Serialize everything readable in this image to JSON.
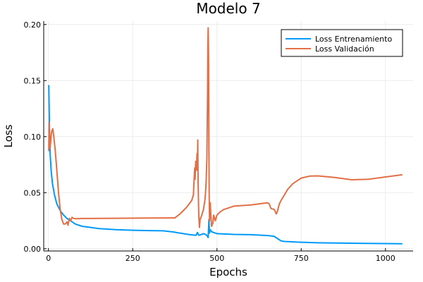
{
  "chart_data": {
    "type": "line",
    "title": "Modelo 7",
    "xlabel": "Epochs",
    "ylabel": "Loss",
    "xlim": [
      -14,
      1082
    ],
    "ylim": [
      -0.002,
      0.203
    ],
    "xticks": [
      0,
      250,
      500,
      750,
      1000
    ],
    "yticks": [
      0.0,
      0.05,
      0.1,
      0.15,
      0.2
    ],
    "xtick_labels": [
      "0",
      "250",
      "500",
      "750",
      "1000"
    ],
    "ytick_labels": [
      "0.00",
      "0.05",
      "0.10",
      "0.15",
      "0.20"
    ],
    "grid": true,
    "legend_position": "top-right",
    "series": [
      {
        "name": "Loss Entrenamiento",
        "color": "#009AFA",
        "points": [
          [
            1,
            0.146
          ],
          [
            3,
            0.11
          ],
          [
            5,
            0.085
          ],
          [
            8,
            0.07
          ],
          [
            12,
            0.058
          ],
          [
            18,
            0.048
          ],
          [
            25,
            0.04
          ],
          [
            35,
            0.034
          ],
          [
            45,
            0.03
          ],
          [
            55,
            0.027
          ],
          [
            65,
            0.025
          ],
          [
            80,
            0.022
          ],
          [
            100,
            0.02
          ],
          [
            150,
            0.018
          ],
          [
            200,
            0.017
          ],
          [
            250,
            0.0165
          ],
          [
            300,
            0.0162
          ],
          [
            340,
            0.016
          ],
          [
            370,
            0.015
          ],
          [
            400,
            0.0135
          ],
          [
            420,
            0.0125
          ],
          [
            438,
            0.012
          ],
          [
            442,
            0.0145
          ],
          [
            446,
            0.012
          ],
          [
            452,
            0.0125
          ],
          [
            460,
            0.0135
          ],
          [
            468,
            0.0125
          ],
          [
            472,
            0.011
          ],
          [
            474,
            0.01
          ],
          [
            476,
            0.026
          ],
          [
            478,
            0.014
          ],
          [
            480,
            0.017
          ],
          [
            485,
            0.015
          ],
          [
            495,
            0.014
          ],
          [
            500,
            0.0135
          ],
          [
            550,
            0.0128
          ],
          [
            600,
            0.0125
          ],
          [
            650,
            0.0118
          ],
          [
            670,
            0.011
          ],
          [
            680,
            0.009
          ],
          [
            690,
            0.007
          ],
          [
            700,
            0.0065
          ],
          [
            750,
            0.0058
          ],
          [
            800,
            0.0053
          ],
          [
            900,
            0.0049
          ],
          [
            1000,
            0.0046
          ],
          [
            1050,
            0.0044
          ]
        ]
      },
      {
        "name": "Loss Validación",
        "color": "#E26F46",
        "points": [
          [
            1,
            0.087
          ],
          [
            2,
            0.113
          ],
          [
            3,
            0.096
          ],
          [
            5,
            0.09
          ],
          [
            8,
            0.1
          ],
          [
            10,
            0.105
          ],
          [
            13,
            0.107
          ],
          [
            16,
            0.1
          ],
          [
            20,
            0.088
          ],
          [
            25,
            0.07
          ],
          [
            30,
            0.05
          ],
          [
            35,
            0.035
          ],
          [
            40,
            0.026
          ],
          [
            45,
            0.022
          ],
          [
            50,
            0.022
          ],
          [
            55,
            0.024
          ],
          [
            58,
            0.021
          ],
          [
            62,
            0.027
          ],
          [
            66,
            0.025
          ],
          [
            70,
            0.028
          ],
          [
            75,
            0.027
          ],
          [
            80,
            0.0268
          ],
          [
            100,
            0.027
          ],
          [
            200,
            0.0272
          ],
          [
            300,
            0.0274
          ],
          [
            355,
            0.0275
          ],
          [
            375,
            0.0275
          ],
          [
            390,
            0.031
          ],
          [
            410,
            0.037
          ],
          [
            425,
            0.043
          ],
          [
            430,
            0.048
          ],
          [
            432,
            0.06
          ],
          [
            434,
            0.072
          ],
          [
            435,
            0.062
          ],
          [
            437,
            0.078
          ],
          [
            439,
            0.07
          ],
          [
            441,
            0.085
          ],
          [
            442,
            0.07
          ],
          [
            443,
            0.097
          ],
          [
            444,
            0.06
          ],
          [
            446,
            0.03
          ],
          [
            448,
            0.019
          ],
          [
            450,
            0.026
          ],
          [
            455,
            0.03
          ],
          [
            460,
            0.035
          ],
          [
            465,
            0.045
          ],
          [
            468,
            0.06
          ],
          [
            470,
            0.08
          ],
          [
            472,
            0.14
          ],
          [
            473,
            0.18
          ],
          [
            474,
            0.197
          ],
          [
            475,
            0.17
          ],
          [
            476,
            0.09
          ],
          [
            477,
            0.05
          ],
          [
            478,
            0.025
          ],
          [
            479,
            0.037
          ],
          [
            480,
            0.041
          ],
          [
            482,
            0.03
          ],
          [
            484,
            0.02
          ],
          [
            488,
            0.023
          ],
          [
            490,
            0.03
          ],
          [
            495,
            0.025
          ],
          [
            500,
            0.03
          ],
          [
            510,
            0.033
          ],
          [
            520,
            0.035
          ],
          [
            550,
            0.038
          ],
          [
            600,
            0.039
          ],
          [
            650,
            0.041
          ],
          [
            655,
            0.04
          ],
          [
            660,
            0.036
          ],
          [
            670,
            0.035
          ],
          [
            676,
            0.031
          ],
          [
            680,
            0.034
          ],
          [
            685,
            0.04
          ],
          [
            690,
            0.043
          ],
          [
            700,
            0.048
          ],
          [
            710,
            0.053
          ],
          [
            725,
            0.058
          ],
          [
            750,
            0.063
          ],
          [
            775,
            0.0648
          ],
          [
            800,
            0.065
          ],
          [
            850,
            0.0635
          ],
          [
            900,
            0.0615
          ],
          [
            950,
            0.062
          ],
          [
            1000,
            0.064
          ],
          [
            1050,
            0.066
          ]
        ]
      }
    ]
  }
}
